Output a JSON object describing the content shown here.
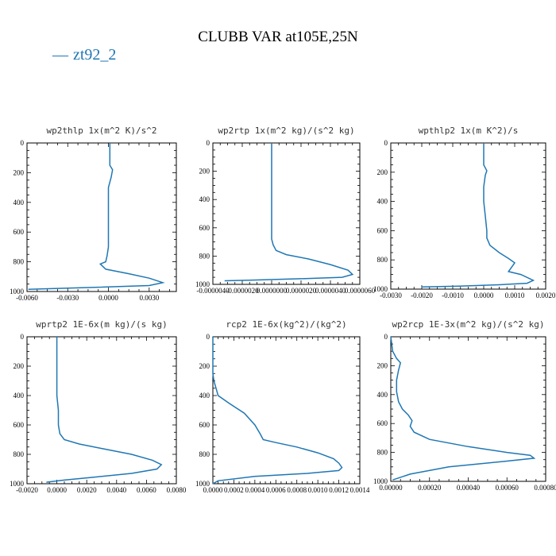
{
  "figure": {
    "title": "CLUBB VAR at105E,25N",
    "legend_label": "zt92_2",
    "series_color": "#1f77b4"
  },
  "chart_data": [
    {
      "type": "line",
      "title": "wp2thlp  1x(m^2 K)/s^2",
      "xlim": [
        -0.006,
        0.005
      ],
      "ylim": [
        1000,
        0
      ],
      "xticks": [
        -0.006,
        -0.003,
        0.0,
        0.003
      ],
      "xtick_labels": [
        "-0.0060",
        "-0.0030",
        "0.0000",
        "0.0030"
      ],
      "yticks": [
        0,
        200,
        400,
        600,
        800,
        1000
      ],
      "ytick_labels": [
        "0",
        "200",
        "400",
        "600",
        "800",
        "1000"
      ],
      "series": [
        {
          "x": [
            0.0001,
            0.0001,
            0.0001,
            0.0003,
            0.0002,
            0.0,
            0.0,
            0.0,
            0.0,
            0.0,
            0.0,
            -0.0001,
            -0.0002,
            -0.0006,
            -0.0002,
            0.0015,
            0.003,
            0.004,
            0.003,
            -0.002,
            -0.0059
          ],
          "y": [
            0,
            100,
            150,
            180,
            230,
            300,
            400,
            500,
            600,
            650,
            700,
            760,
            800,
            815,
            850,
            880,
            910,
            940,
            960,
            975,
            985
          ]
        }
      ]
    },
    {
      "type": "line",
      "title": "wp2rtp  1x(m^2 kg)/(s^2 kg)",
      "xlim": [
        -4e-06,
        6e-06
      ],
      "ylim": [
        1000,
        0
      ],
      "xticks": [
        -4e-06,
        -2e-06,
        0.0,
        2e-06,
        4e-06,
        6e-06
      ],
      "xtick_labels": [
        "-0.0000040",
        "-0.0000020",
        "0.0000000",
        "0.0000020",
        "0.0000040",
        "0.0000060"
      ],
      "yticks": [
        0,
        200,
        400,
        600,
        800,
        1000
      ],
      "ytick_labels": [
        "0",
        "200",
        "400",
        "600",
        "800",
        "1000"
      ],
      "series": [
        {
          "x": [
            0.0,
            0.0,
            0.0,
            0.0,
            0.0,
            0.0,
            0.0,
            0.0,
            1e-07,
            3e-07,
            1e-06,
            2.5e-06,
            4e-06,
            5.2e-06,
            5.5e-06,
            4.8e-06,
            2e-06,
            -1.5e-06,
            -3.2e-06
          ],
          "y": [
            0,
            100,
            200,
            300,
            400,
            500,
            600,
            680,
            720,
            760,
            790,
            820,
            860,
            900,
            930,
            950,
            960,
            970,
            975
          ]
        }
      ]
    },
    {
      "type": "line",
      "title": "wpthlp2  1x(m K^2)/s",
      "xlim": [
        -0.003,
        0.002
      ],
      "ylim": [
        1000,
        0
      ],
      "xticks": [
        -0.003,
        -0.002,
        -0.001,
        0.0,
        0.001,
        0.002
      ],
      "xtick_labels": [
        "-0.0030",
        "-0.0020",
        "-0.0010",
        "0.0000",
        "0.0010",
        "0.0020"
      ],
      "yticks": [
        0,
        200,
        400,
        600,
        800,
        1000
      ],
      "ytick_labels": [
        "0",
        "200",
        "400",
        "600",
        "800",
        "1000"
      ],
      "series": [
        {
          "x": [
            0.0,
            0.0,
            0.0,
            5e-05,
            0.0001,
            5e-05,
            0.0,
            0.0,
            5e-05,
            0.0001,
            0.0001,
            0.0002,
            0.0005,
            0.0008,
            0.001,
            0.0009,
            0.0008,
            0.0012,
            0.0016,
            0.0014,
            0.0005,
            -0.0008,
            -0.002
          ],
          "y": [
            0,
            100,
            150,
            170,
            190,
            220,
            300,
            400,
            500,
            600,
            650,
            700,
            750,
            790,
            820,
            850,
            880,
            900,
            940,
            960,
            970,
            980,
            985
          ]
        }
      ]
    },
    {
      "type": "line",
      "title": "wprtp2  1E-6x(m kg)/(s kg)",
      "xlim": [
        -0.002,
        0.008
      ],
      "ylim": [
        1000,
        0
      ],
      "xticks": [
        -0.002,
        0.0,
        0.002,
        0.004,
        0.006,
        0.008
      ],
      "xtick_labels": [
        "-0.0020",
        "0.0000",
        "0.0020",
        "0.0040",
        "0.0060",
        "0.0080"
      ],
      "yticks": [
        0,
        200,
        400,
        600,
        800,
        1000
      ],
      "ytick_labels": [
        "0",
        "200",
        "400",
        "600",
        "800",
        "1000"
      ],
      "series": [
        {
          "x": [
            0.0,
            0.0,
            0.0,
            0.0,
            0.0,
            0.0001,
            0.0001,
            0.0002,
            0.0005,
            0.0015,
            0.003,
            0.005,
            0.0064,
            0.007,
            0.0067,
            0.005,
            0.0025,
            0.0005,
            -0.0007
          ],
          "y": [
            0,
            100,
            200,
            300,
            400,
            500,
            600,
            660,
            700,
            730,
            760,
            800,
            840,
            870,
            900,
            930,
            955,
            975,
            990
          ]
        }
      ]
    },
    {
      "type": "line",
      "title": "rcp2  1E-6x(kg^2)/(kg^2)",
      "xlim": [
        0.0,
        0.0014
      ],
      "ylim": [
        1000,
        0
      ],
      "xticks": [
        0.0,
        0.0002,
        0.0004,
        0.0006,
        0.0008,
        0.001,
        0.0012,
        0.0014
      ],
      "xtick_labels": [
        "0.0000",
        "0.0002",
        "0.0004",
        "0.0006",
        "0.0008",
        "0.0010",
        "0.0012",
        "0.0014"
      ],
      "yticks": [
        0,
        200,
        400,
        600,
        800,
        1000
      ],
      "ytick_labels": [
        "0",
        "200",
        "400",
        "600",
        "800",
        "1000"
      ],
      "series": [
        {
          "x": [
            0.0,
            0.0,
            0.0,
            1e-05,
            3e-05,
            5e-05,
            0.00015,
            0.0003,
            0.0004,
            0.00045,
            0.00048,
            0.0006,
            0.0008,
            0.001,
            0.00115,
            0.0012,
            0.00123,
            0.0012,
            0.0009,
            0.0004,
            5e-05,
            0.0
          ],
          "y": [
            0,
            150,
            250,
            300,
            350,
            400,
            450,
            520,
            600,
            660,
            700,
            720,
            750,
            790,
            830,
            860,
            890,
            910,
            930,
            950,
            980,
            1000
          ]
        }
      ]
    },
    {
      "type": "line",
      "title": "wp2rcp  1E-3x(m^2 kg)/(s^2 kg)",
      "xlim": [
        0.0,
        0.0008
      ],
      "ylim": [
        1000,
        0
      ],
      "xticks": [
        0.0,
        0.0002,
        0.0004,
        0.0006,
        0.0008
      ],
      "xtick_labels": [
        "0.00000",
        "0.00020",
        "0.00040",
        "0.00060",
        "0.00080"
      ],
      "yticks": [
        0,
        200,
        400,
        600,
        800,
        1000
      ],
      "ytick_labels": [
        "0",
        "200",
        "400",
        "600",
        "800",
        "1000"
      ],
      "series": [
        {
          "x": [
            0.0,
            1e-05,
            3e-05,
            5e-05,
            4e-05,
            3e-05,
            3e-05,
            4e-05,
            6e-05,
            9e-05,
            0.00011,
            0.0001,
            0.00012,
            0.0002,
            0.0004,
            0.0006,
            0.00072,
            0.00074,
            0.0006,
            0.0003,
            0.0001,
            1e-05
          ],
          "y": [
            0,
            100,
            150,
            180,
            230,
            300,
            380,
            450,
            500,
            540,
            580,
            620,
            660,
            710,
            760,
            800,
            820,
            840,
            860,
            900,
            950,
            990
          ]
        }
      ]
    }
  ]
}
